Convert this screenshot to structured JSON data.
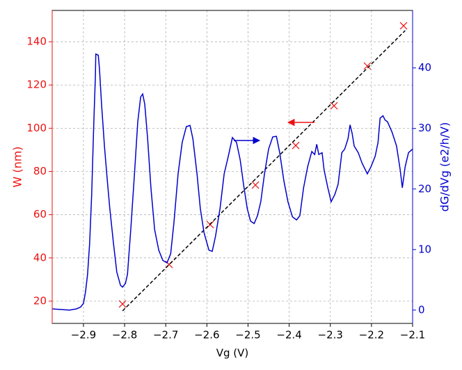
{
  "chart_data": {
    "type": "line",
    "xlabel": "Vg (V)",
    "ylabel": "W (nm)",
    "y2label": "dG/dVg (e2/h/V)",
    "xlim": [
      -2.976,
      -2.1
    ],
    "ylim": [
      9.7,
      154.5
    ],
    "y2lim": [
      -2.2,
      49.5
    ],
    "xticks": [
      {
        "value": -2.9,
        "label": "−2.9"
      },
      {
        "value": -2.8,
        "label": "−2.8"
      },
      {
        "value": -2.7,
        "label": "−2.7"
      },
      {
        "value": -2.6,
        "label": "−2.6"
      },
      {
        "value": -2.5,
        "label": "−2.5"
      },
      {
        "value": -2.4,
        "label": "−2.4"
      },
      {
        "value": -2.3,
        "label": "−2.3"
      },
      {
        "value": -2.2,
        "label": "−2.2"
      },
      {
        "value": -2.1,
        "label": "−2.1"
      }
    ],
    "yticks": [
      20,
      40,
      60,
      80,
      100,
      120,
      140
    ],
    "y2ticks": [
      0,
      10,
      20,
      30,
      40
    ],
    "ycolor": "#ee1111",
    "y2color": "#0000cc",
    "grid": true,
    "series": [
      {
        "type": "scatter",
        "color": "#ee1111",
        "x": [
          -2.805,
          -2.692,
          -2.592,
          -2.482,
          -2.384,
          -2.291,
          -2.21,
          -2.122
        ],
        "values": [
          18.7,
          37,
          55.4,
          73.7,
          92,
          110.4,
          128.8,
          147.4
        ]
      },
      {
        "type": "line",
        "color": "#000000",
        "dashed": true,
        "x": [
          -2.805,
          -2.118
        ],
        "values": [
          15.5,
          145.2
        ]
      },
      {
        "type": "line",
        "color": "#0000cc",
        "axis": "y2",
        "x": [
          -2.976,
          -2.934,
          -2.917,
          -2.907,
          -2.9,
          -2.895,
          -2.89,
          -2.885,
          -2.88,
          -2.875,
          -2.871,
          -2.87,
          -2.864,
          -2.861,
          -2.856,
          -2.849,
          -2.842,
          -2.836,
          -2.827,
          -2.819,
          -2.81,
          -2.805,
          -2.798,
          -2.793,
          -2.785,
          -2.776,
          -2.768,
          -2.761,
          -2.756,
          -2.751,
          -2.744,
          -2.736,
          -2.727,
          -2.717,
          -2.707,
          -2.697,
          -2.688,
          -2.68,
          -2.67,
          -2.66,
          -2.65,
          -2.641,
          -2.634,
          -2.624,
          -2.616,
          -2.607,
          -2.595,
          -2.587,
          -2.579,
          -2.568,
          -2.558,
          -2.548,
          -2.538,
          -2.528,
          -2.519,
          -2.511,
          -2.502,
          -2.494,
          -2.485,
          -2.477,
          -2.469,
          -2.46,
          -2.45,
          -2.44,
          -2.431,
          -2.423,
          -2.413,
          -2.403,
          -2.392,
          -2.382,
          -2.374,
          -2.365,
          -2.355,
          -2.345,
          -2.338,
          -2.333,
          -2.328,
          -2.32,
          -2.315,
          -2.306,
          -2.298,
          -2.289,
          -2.281,
          -2.272,
          -2.265,
          -2.257,
          -2.252,
          -2.247,
          -2.242,
          -2.232,
          -2.223,
          -2.21,
          -2.201,
          -2.191,
          -2.184,
          -2.179,
          -2.172,
          -2.167,
          -2.161,
          -2.15,
          -2.139,
          -2.13,
          -2.125,
          -2.118,
          -2.11,
          -2.1
        ],
        "values": [
          0.2,
          0.0,
          0.2,
          0.5,
          1.1,
          3.0,
          5.9,
          11.0,
          19.1,
          30.6,
          38.6,
          42.3,
          42.1,
          39.8,
          34.0,
          27.1,
          21.4,
          16.8,
          11.0,
          6.3,
          4.1,
          3.8,
          4.4,
          5.9,
          13.3,
          22.5,
          31.1,
          35.2,
          35.7,
          34.0,
          28.3,
          20.2,
          13.3,
          9.9,
          8.2,
          7.8,
          9.3,
          14.5,
          22.5,
          27.7,
          30.3,
          30.5,
          28.3,
          22.5,
          16.8,
          12.8,
          9.9,
          9.7,
          12.2,
          16.8,
          22.5,
          25.4,
          28.5,
          27.7,
          24.8,
          20.8,
          16.8,
          14.7,
          14.3,
          15.6,
          17.9,
          22.5,
          26.6,
          28.6,
          28.7,
          26.0,
          21.4,
          17.9,
          15.4,
          14.9,
          15.6,
          20.2,
          23.7,
          26.2,
          25.7,
          27.4,
          25.7,
          26.0,
          23.1,
          20.2,
          17.9,
          19.1,
          20.8,
          26.0,
          26.6,
          28.3,
          30.6,
          29.2,
          27.1,
          26.0,
          24.3,
          22.5,
          23.7,
          25.4,
          27.7,
          31.7,
          32.1,
          31.4,
          31.1,
          29.4,
          27.1,
          23.1,
          20.2,
          23.7,
          26.0,
          26.6
        ]
      }
    ]
  }
}
